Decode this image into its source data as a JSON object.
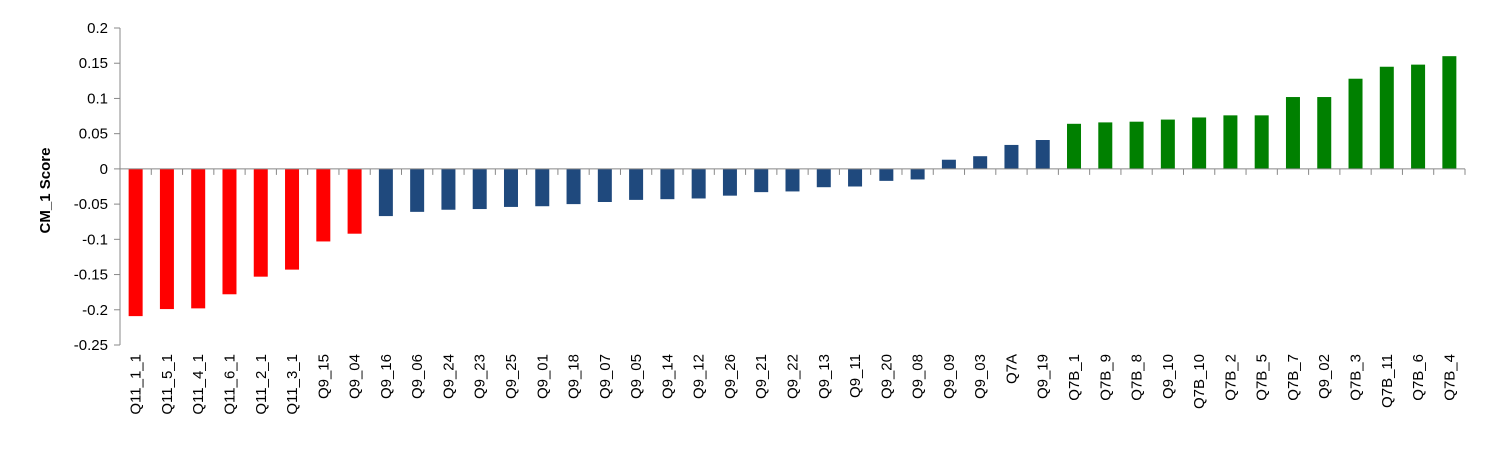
{
  "chart_data": {
    "type": "bar",
    "title": "",
    "xlabel": "",
    "ylabel": "CM_1 Score",
    "ylim": [
      -0.25,
      0.2
    ],
    "yticks": [
      0.2,
      0.15,
      0.1,
      0.05,
      0,
      -0.05,
      -0.1,
      -0.15,
      -0.2,
      -0.25
    ],
    "ytick_labels": [
      "0.2",
      "0.15",
      "0.1",
      "0.05",
      "0",
      "-0.05",
      "-0.1",
      "-0.15",
      "-0.2",
      "-0.25"
    ],
    "grid": false,
    "legend": "none",
    "colors": {
      "negative_high": "#ff0000",
      "neutral": "#1f497d",
      "positive_high": "#008000",
      "axis": "#888888"
    },
    "categories": [
      "Q11_1_1",
      "Q11_5_1",
      "Q11_4_1",
      "Q11_6_1",
      "Q11_2_1",
      "Q11_3_1",
      "Q9_15",
      "Q9_04",
      "Q9_16",
      "Q9_06",
      "Q9_24",
      "Q9_23",
      "Q9_25",
      "Q9_01",
      "Q9_18",
      "Q9_07",
      "Q9_05",
      "Q9_14",
      "Q9_12",
      "Q9_26",
      "Q9_21",
      "Q9_22",
      "Q9_13",
      "Q9_11",
      "Q9_20",
      "Q9_08",
      "Q9_09",
      "Q9_03",
      "Q7A",
      "Q9_19",
      "Q7B_1",
      "Q7B_9",
      "Q7B_8",
      "Q9_10",
      "Q7B_10",
      "Q7B_2",
      "Q7B_5",
      "Q7B_7",
      "Q9_02",
      "Q7B_3",
      "Q7B_11",
      "Q7B_6",
      "Q7B_4"
    ],
    "values": [
      -0.209,
      -0.199,
      -0.198,
      -0.178,
      -0.153,
      -0.143,
      -0.103,
      -0.092,
      -0.067,
      -0.061,
      -0.058,
      -0.057,
      -0.054,
      -0.053,
      -0.05,
      -0.047,
      -0.044,
      -0.043,
      -0.042,
      -0.038,
      -0.033,
      -0.032,
      -0.026,
      -0.025,
      -0.017,
      -0.015,
      0.013,
      0.018,
      0.034,
      0.041,
      0.064,
      0.066,
      0.067,
      0.07,
      0.073,
      0.076,
      0.076,
      0.102,
      0.102,
      0.128,
      0.145,
      0.148,
      0.16
    ],
    "bar_groups": [
      "negative_high",
      "negative_high",
      "negative_high",
      "negative_high",
      "negative_high",
      "negative_high",
      "negative_high",
      "negative_high",
      "neutral",
      "neutral",
      "neutral",
      "neutral",
      "neutral",
      "neutral",
      "neutral",
      "neutral",
      "neutral",
      "neutral",
      "neutral",
      "neutral",
      "neutral",
      "neutral",
      "neutral",
      "neutral",
      "neutral",
      "neutral",
      "neutral",
      "neutral",
      "neutral",
      "neutral",
      "positive_high",
      "positive_high",
      "positive_high",
      "positive_high",
      "positive_high",
      "positive_high",
      "positive_high",
      "positive_high",
      "positive_high",
      "positive_high",
      "positive_high",
      "positive_high",
      "positive_high"
    ]
  }
}
